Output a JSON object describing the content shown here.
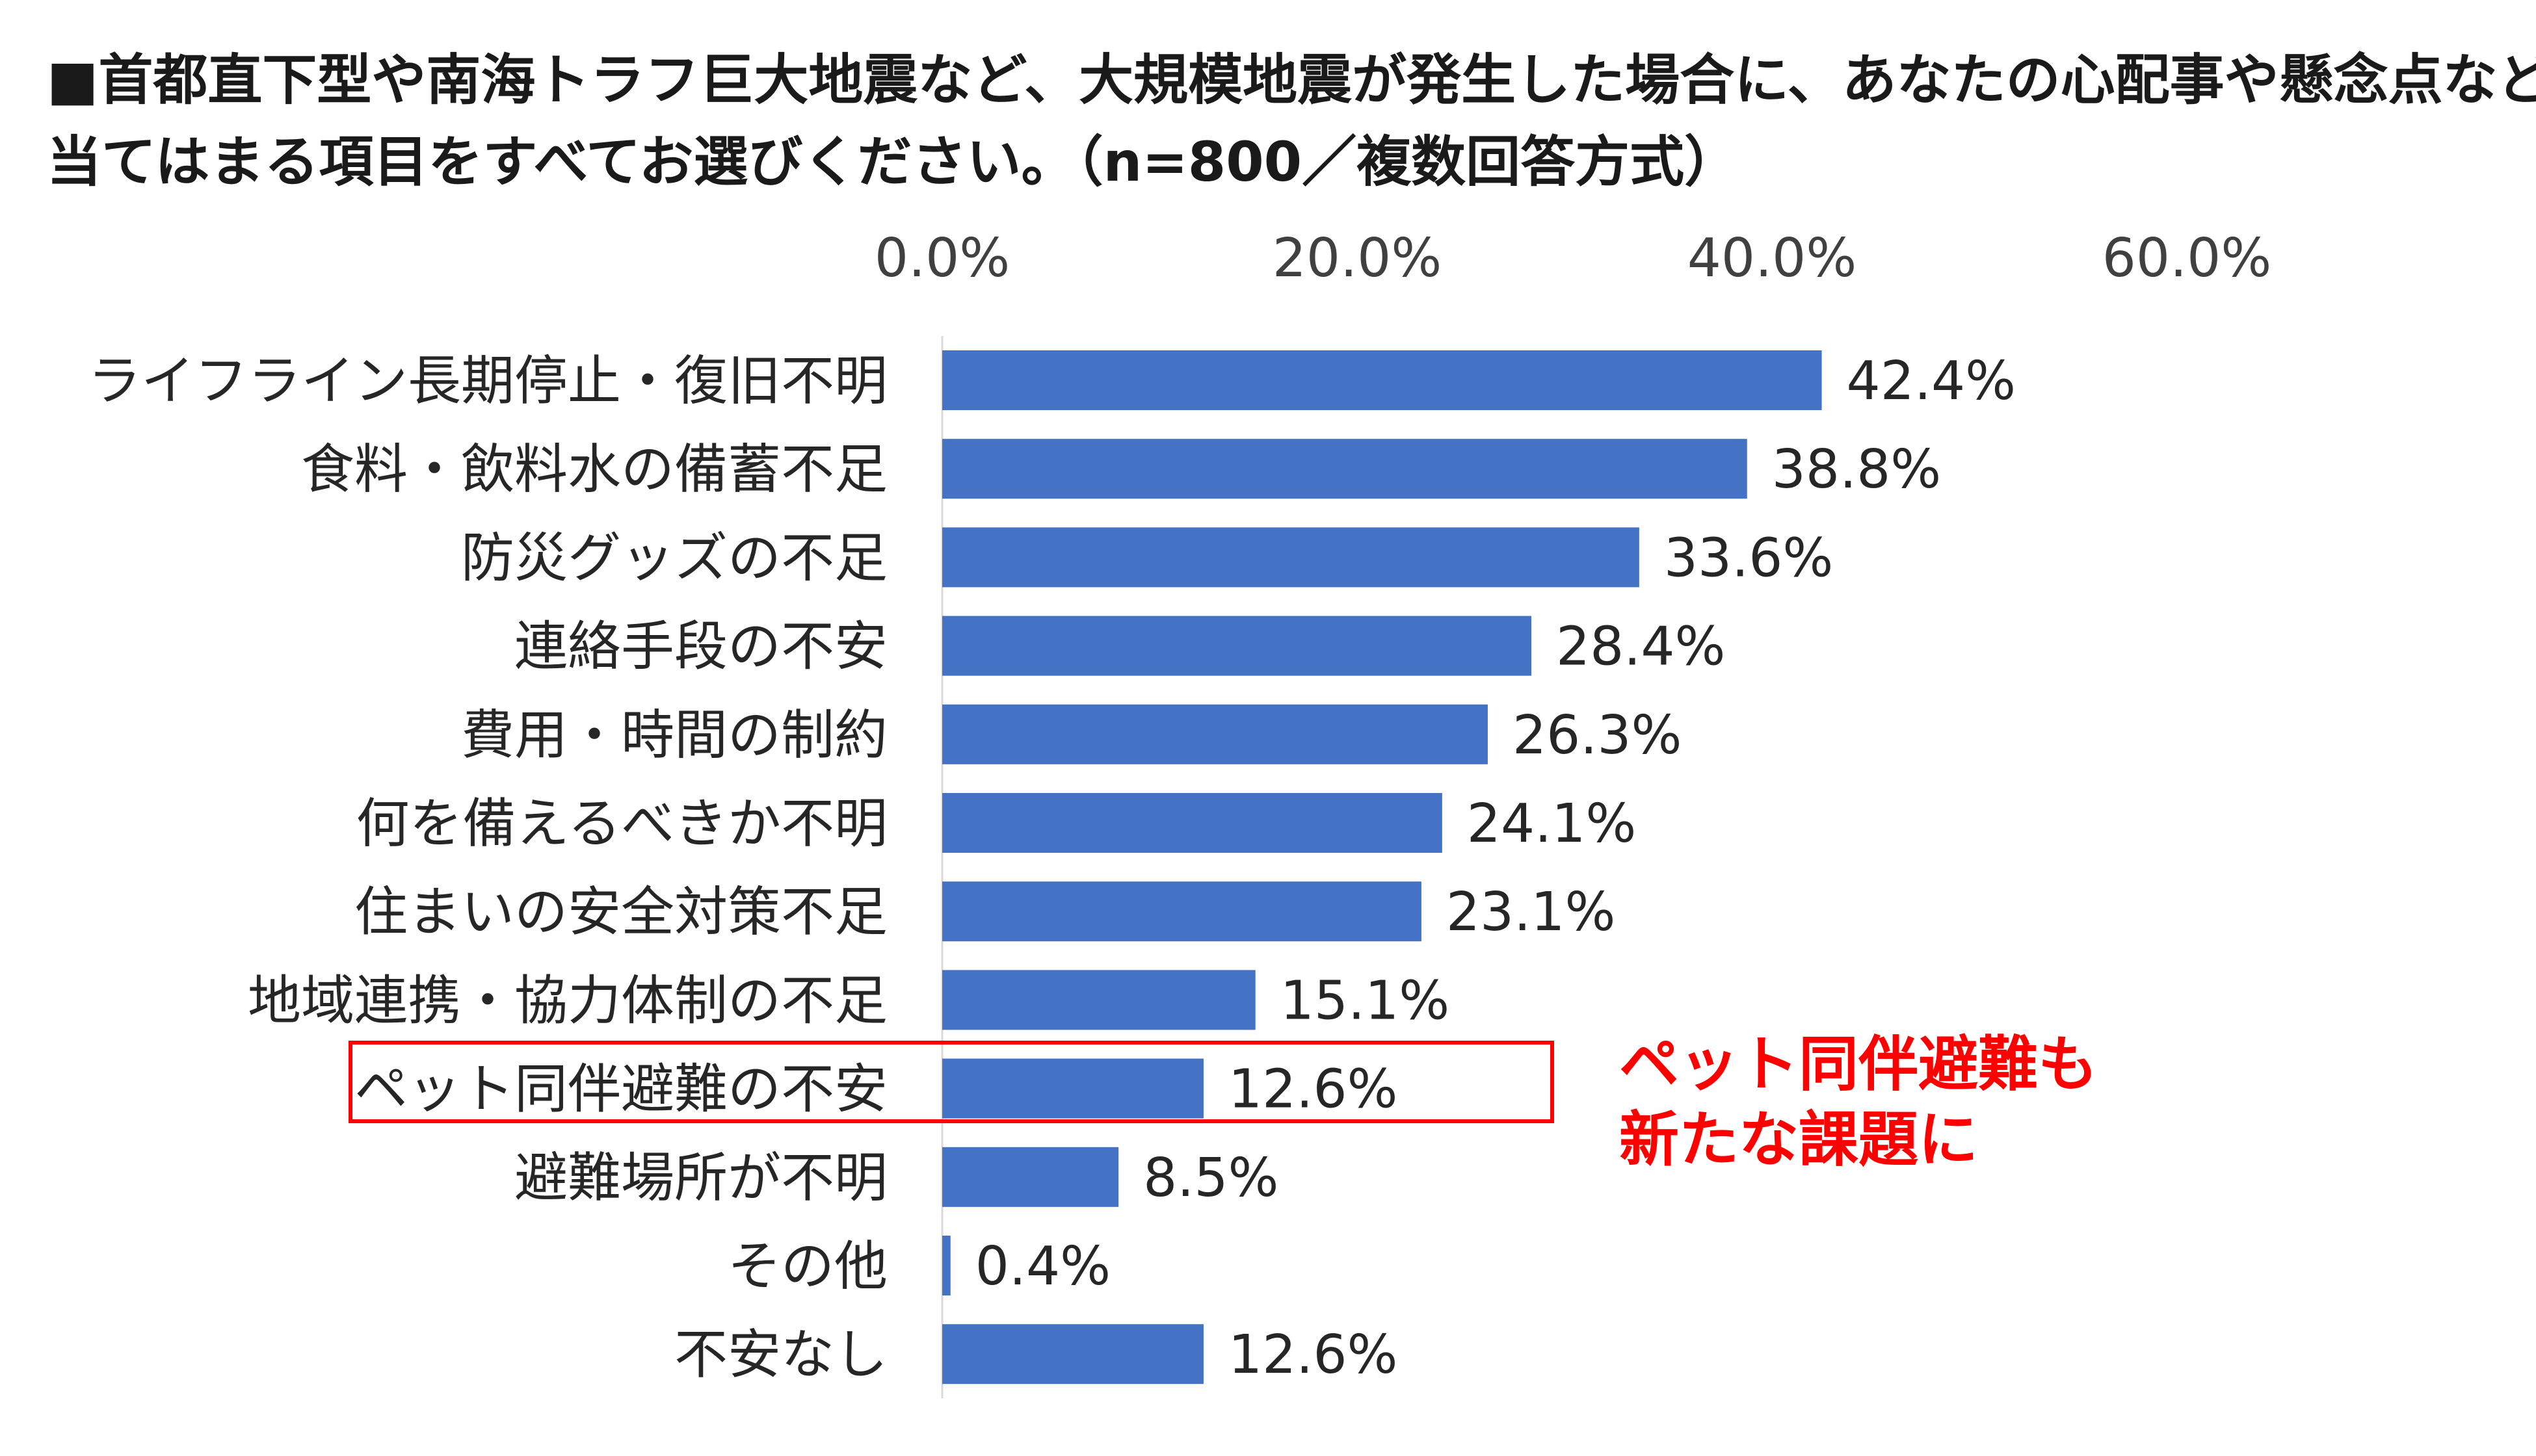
{
  "title": {
    "line1": "■首都直下型や南海トラフ巨大地震など、大規模地震が発生した場合に、あなたの心配事や懸念点など、",
    "line2": "当てはまる項目をすべてお選びください。（n=800／複数回答方式）"
  },
  "callout": {
    "line1": "ペット同伴避難も",
    "line2": "新たな課題に",
    "color": "#ff0000"
  },
  "colors": {
    "bar": "#4472c4",
    "highlight": "#ff0000"
  },
  "chart_data": {
    "type": "bar",
    "orientation": "horizontal",
    "categories": [
      "ライフライン長期停止・復旧不明",
      "食料・飲料水の備蓄不足",
      "防災グッズの不足",
      "連絡手段の不安",
      "費用・時間の制約",
      "何を備えるべきか不明",
      "住まいの安全対策不足",
      "地域連携・協力体制の不足",
      "ペット同伴避難の不安",
      "避難場所が不明",
      "その他",
      "不安なし"
    ],
    "values": [
      42.4,
      38.8,
      33.6,
      28.4,
      26.3,
      24.1,
      23.1,
      15.1,
      12.6,
      8.5,
      0.4,
      12.6
    ],
    "data_labels": [
      "42.4%",
      "38.8%",
      "33.6%",
      "28.4%",
      "26.3%",
      "24.1%",
      "23.1%",
      "15.1%",
      "12.6%",
      "8.5%",
      "0.4%",
      "12.6%"
    ],
    "xlim": [
      0,
      60
    ],
    "x_ticks": [
      0,
      20,
      40,
      60
    ],
    "x_tick_labels": [
      "0.0%",
      "20.0%",
      "40.0%",
      "60.0%"
    ],
    "x_axis_position": "top",
    "grid": false,
    "highlighted_category": "ペット同伴避難の不安"
  }
}
